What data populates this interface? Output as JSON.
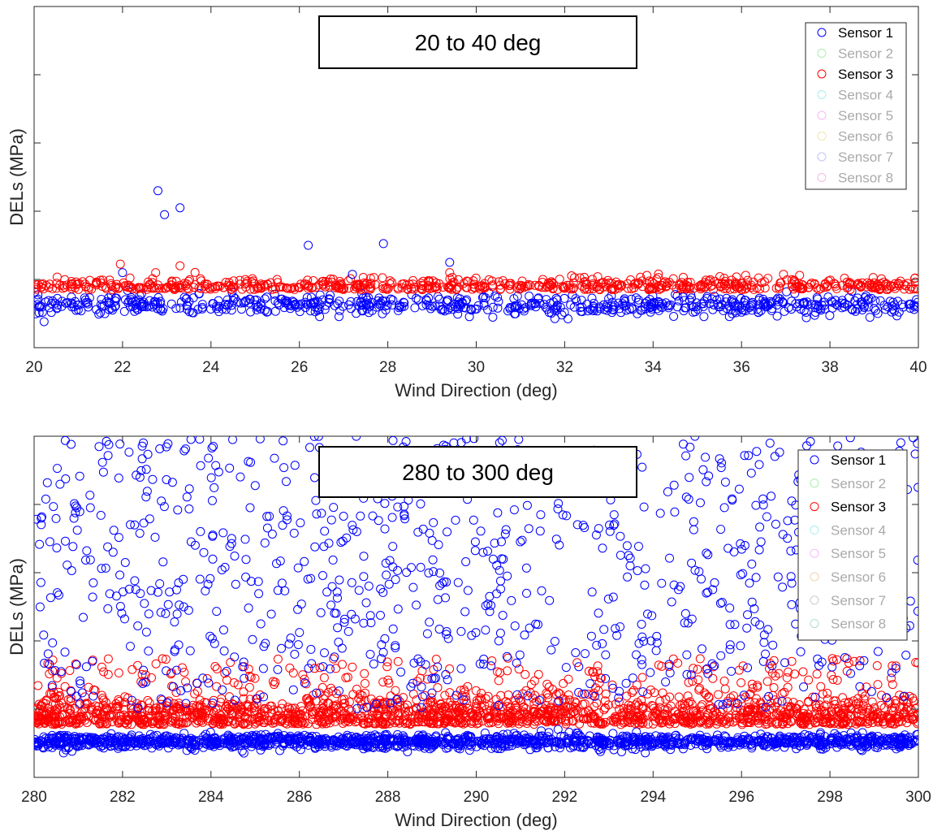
{
  "legend_entries": [
    "Sensor 1",
    "Sensor 2",
    "Sensor 3",
    "Sensor 4",
    "Sensor 5",
    "Sensor 6",
    "Sensor 7",
    "Sensor 8"
  ],
  "chart_data": [
    {
      "type": "scatter",
      "title": "20 to 40 deg",
      "xlabel": "Wind Direction (deg)",
      "ylabel": "DELs (MPa)",
      "xlim": [
        20,
        40
      ],
      "ylim": [
        0,
        10
      ],
      "x_ticks": [
        20,
        22,
        24,
        26,
        28,
        30,
        32,
        34,
        36,
        38,
        40
      ],
      "y_tick_labels": [],
      "y_tick_values": [
        2,
        4,
        6,
        8
      ],
      "grid": false,
      "legend_position": "top-right",
      "series": [
        {
          "name": "Sensor 1",
          "color": "#0000ff",
          "visible": true,
          "band": {
            "center": 1.25,
            "spread": 0.14
          },
          "outliers": [
            [
              22.8,
              4.6
            ],
            [
              22.95,
              3.9
            ],
            [
              23.3,
              4.1
            ],
            [
              26.2,
              3.0
            ],
            [
              27.9,
              3.05
            ],
            [
              29.4,
              2.5
            ],
            [
              22.0,
              2.2
            ],
            [
              27.2,
              2.15
            ]
          ]
        },
        {
          "name": "Sensor 2",
          "color": "#77dd77",
          "visible": false
        },
        {
          "name": "Sensor 3",
          "color": "#ff0000",
          "visible": true,
          "band": {
            "center": 1.75,
            "spread": 0.16
          },
          "outliers": [
            [
              21.95,
              2.45
            ],
            [
              22.75,
              2.2
            ],
            [
              23.3,
              2.4
            ],
            [
              36.95,
              2.15
            ],
            [
              29.4,
              2.2
            ]
          ]
        },
        {
          "name": "Sensor 4",
          "color": "#6fe3e3",
          "visible": false
        },
        {
          "name": "Sensor 5",
          "color": "#f089f0",
          "visible": false
        },
        {
          "name": "Sensor 6",
          "color": "#e8d27a",
          "visible": false
        },
        {
          "name": "Sensor 7",
          "color": "#9999ee",
          "visible": false
        },
        {
          "name": "Sensor 8",
          "color": "#ee88cc",
          "visible": false
        }
      ]
    },
    {
      "type": "scatter",
      "title": "280 to 300 deg",
      "xlabel": "Wind Direction (deg)",
      "ylabel": "DELs (MPa)",
      "xlim": [
        280,
        300
      ],
      "ylim": [
        0,
        10
      ],
      "x_ticks": [
        280,
        282,
        284,
        286,
        288,
        290,
        292,
        294,
        296,
        298,
        300
      ],
      "y_tick_labels": [],
      "y_tick_values": [
        2,
        4,
        6,
        8
      ],
      "grid": false,
      "legend_position": "top-right",
      "series": [
        {
          "name": "Sensor 1",
          "color": "#0000ff",
          "visible": true,
          "band": {
            "center": 1.05,
            "spread": 0.1
          },
          "scatter_range": [
            2.0,
            10.0
          ]
        },
        {
          "name": "Sensor 2",
          "color": "#77dd77",
          "visible": false
        },
        {
          "name": "Sensor 3",
          "color": "#ff0000",
          "visible": true,
          "band": {
            "center": 1.55,
            "spread": 0.3
          },
          "scatter_range": [
            2.0,
            3.5
          ]
        },
        {
          "name": "Sensor 4",
          "color": "#6fe3e3",
          "visible": false
        },
        {
          "name": "Sensor 5",
          "color": "#f089f0",
          "visible": false
        },
        {
          "name": "Sensor 6",
          "color": "#e8b27a",
          "visible": false
        },
        {
          "name": "Sensor 7",
          "color": "#aaaaaa",
          "visible": false
        },
        {
          "name": "Sensor 8",
          "color": "#77c9a0",
          "visible": false
        }
      ]
    }
  ]
}
